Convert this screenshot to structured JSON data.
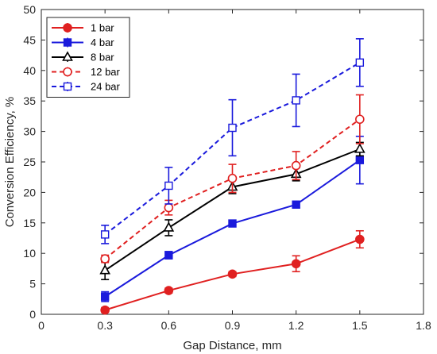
{
  "chart_data": {
    "type": "line",
    "xlabel": "Gap Distance, mm",
    "ylabel": "Conversion Efficiency, %",
    "xlim": [
      0,
      1.8
    ],
    "ylim": [
      0,
      50
    ],
    "xticks": [
      "0",
      "0.3",
      "0.6",
      "0.9",
      "1.2",
      "1.5",
      "1.8"
    ],
    "yticks": [
      "0",
      "5",
      "10",
      "15",
      "20",
      "25",
      "30",
      "35",
      "40",
      "45",
      "50"
    ],
    "grid": false,
    "legend_position": "top-left",
    "x": [
      0.3,
      0.6,
      0.9,
      1.2,
      1.5
    ],
    "series": [
      {
        "name": "1 bar",
        "color": "#e02020",
        "line": "solid",
        "marker": "circle-filled",
        "values": [
          0.7,
          3.9,
          6.6,
          8.3,
          12.3
        ],
        "errors": [
          0.4,
          0.4,
          0.4,
          1.3,
          1.4
        ]
      },
      {
        "name": "4 bar",
        "color": "#1a1adc",
        "line": "solid",
        "marker": "square-filled",
        "values": [
          2.9,
          9.7,
          14.9,
          18.0,
          25.3
        ],
        "errors": [
          0.8,
          0.6,
          0.5,
          0.5,
          3.9
        ]
      },
      {
        "name": "8 bar",
        "color": "#000000",
        "line": "solid",
        "marker": "triangle-open",
        "values": [
          7.2,
          14.2,
          20.9,
          23.0,
          27.1
        ],
        "errors": [
          1.5,
          1.3,
          1.1,
          1.1,
          1.1
        ]
      },
      {
        "name": "12 bar",
        "color": "#e02020",
        "line": "dashed",
        "marker": "circle-open",
        "values": [
          9.1,
          17.5,
          22.3,
          24.4,
          32.0
        ],
        "errors": [
          0.6,
          1.2,
          2.3,
          2.3,
          4.0
        ]
      },
      {
        "name": "24 bar",
        "color": "#1a1adc",
        "line": "dashed",
        "marker": "square-open",
        "values": [
          13.1,
          21.1,
          30.6,
          35.1,
          41.3
        ],
        "errors": [
          1.5,
          3.0,
          4.6,
          4.3,
          3.9
        ]
      }
    ]
  }
}
